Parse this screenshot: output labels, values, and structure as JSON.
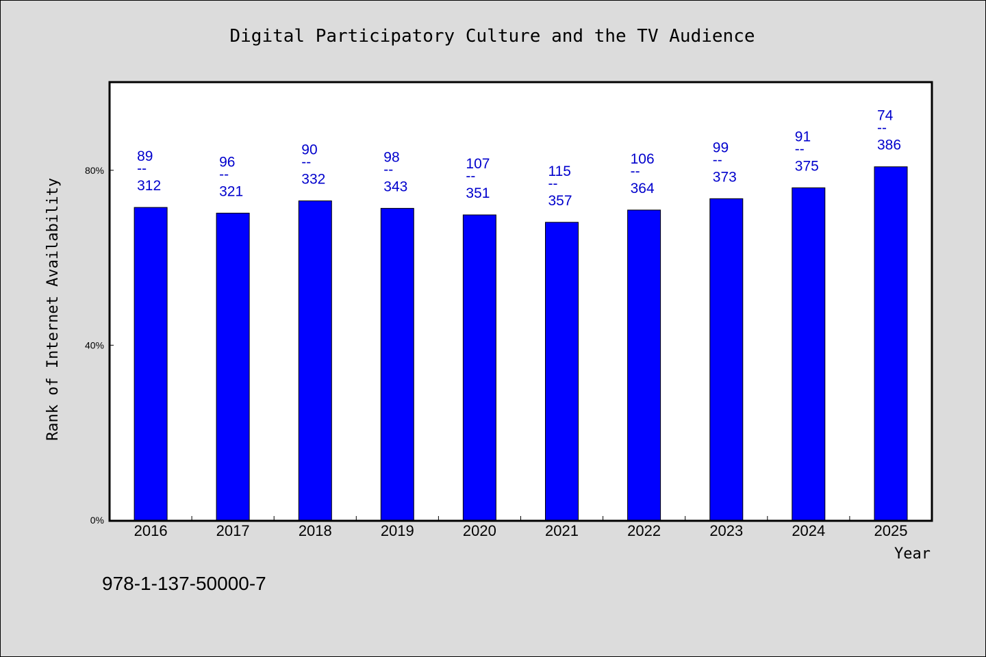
{
  "chart_data": {
    "type": "bar",
    "title": "Digital Participatory Culture and the TV Audience",
    "xlabel": "Year",
    "ylabel": "Rank of Internet Availability",
    "categories": [
      "2016",
      "2017",
      "2018",
      "2019",
      "2020",
      "2021",
      "2022",
      "2023",
      "2024",
      "2025"
    ],
    "values": [
      71.5,
      70.2,
      73.0,
      71.3,
      69.8,
      68.1,
      70.9,
      73.5,
      76.0,
      80.8
    ],
    "value_unit": "%",
    "ylim": [
      0,
      100
    ],
    "yticks": [
      {
        "value": 0,
        "label": "0%"
      },
      {
        "value": 40,
        "label": "40%"
      },
      {
        "value": 80,
        "label": "80%"
      }
    ],
    "data_labels": [
      {
        "top": "89",
        "sep": "--",
        "bottom": "312"
      },
      {
        "top": "96",
        "sep": "--",
        "bottom": "321"
      },
      {
        "top": "90",
        "sep": "--",
        "bottom": "332"
      },
      {
        "top": "98",
        "sep": "--",
        "bottom": "343"
      },
      {
        "top": "107",
        "sep": "--",
        "bottom": "351"
      },
      {
        "top": "115",
        "sep": "--",
        "bottom": "357"
      },
      {
        "top": "106",
        "sep": "--",
        "bottom": "364"
      },
      {
        "top": "99",
        "sep": "--",
        "bottom": "373"
      },
      {
        "top": "91",
        "sep": "--",
        "bottom": "375"
      },
      {
        "top": "74",
        "sep": "--",
        "bottom": "386"
      }
    ],
    "grid": false,
    "bar_color": "#0000ff",
    "label_color": "#0000cc",
    "plot_background": "#ffffff"
  },
  "footer": {
    "isbn": "978-1-137-50000-7"
  }
}
